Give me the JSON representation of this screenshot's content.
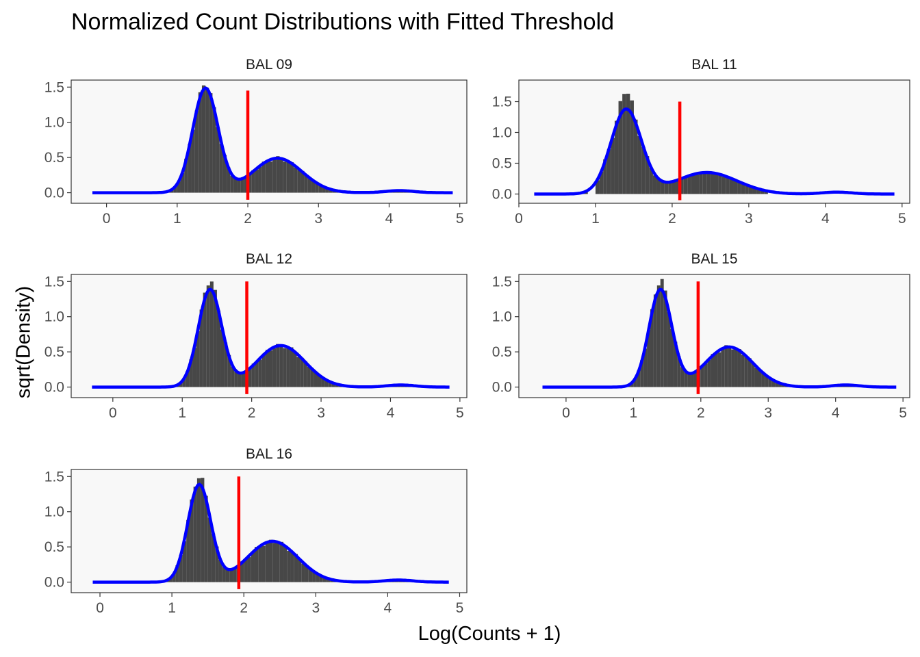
{
  "title": "Normalized Count Distributions with Fitted Threshold",
  "colors": {
    "panel_bg": "#f8f8f8",
    "bar": "#474747",
    "density": "#0000ff",
    "threshold": "#ff0000",
    "axis": "#333333"
  },
  "chart_data": {
    "type": "bar",
    "title": "Normalized Count Distributions with Fitted Threshold",
    "xlabel": "Log(Counts + 1)",
    "ylabel": "sqrt(Density)",
    "grid": false,
    "layout": "facet grid, 2 columns",
    "panels": [
      {
        "label": "BAL 09",
        "xlim": [
          -0.5,
          5.1
        ],
        "ylim": [
          -0.15,
          1.6
        ],
        "x_ticks": [
          0,
          1,
          2,
          3,
          4,
          5
        ],
        "y_ticks": [
          0.0,
          0.5,
          1.0,
          1.5
        ],
        "y_tick_labels": [
          "0.0",
          "0.5",
          "1.0",
          "1.5"
        ],
        "threshold": 2.0,
        "threshold_top": 1.45,
        "peak1": {
          "center": 1.4,
          "sd": 0.18,
          "height": 1.48
        },
        "peak2": {
          "center": 2.42,
          "sd": 0.35,
          "height": 0.49
        },
        "curve_range": [
          -0.2,
          4.9
        ],
        "hist_range": [
          0.2,
          4.5
        ],
        "hist_peak_boost": 0.08
      },
      {
        "label": "BAL 11",
        "xlim": [
          0.0,
          5.1
        ],
        "ylim": [
          -0.15,
          1.85
        ],
        "x_ticks": [
          0,
          1,
          2,
          3,
          4,
          5
        ],
        "y_ticks": [
          0.0,
          0.5,
          1.0,
          1.5
        ],
        "y_tick_labels": [
          "0.0",
          "0.5",
          "1.0",
          "1.5"
        ],
        "threshold": 2.1,
        "threshold_top": 1.5,
        "peak1": {
          "center": 1.4,
          "sd": 0.2,
          "height": 1.37
        },
        "peak2": {
          "center": 2.45,
          "sd": 0.4,
          "height": 0.35
        },
        "curve_range": [
          0.2,
          4.9
        ],
        "hist_range": [
          0.55,
          3.25
        ],
        "hist_peak_boost": 0.45
      },
      {
        "label": "BAL 12",
        "xlim": [
          -0.6,
          5.1
        ],
        "ylim": [
          -0.15,
          1.6
        ],
        "x_ticks": [
          0,
          1,
          2,
          3,
          4,
          5
        ],
        "y_ticks": [
          0.0,
          0.5,
          1.0,
          1.5
        ],
        "y_tick_labels": [
          "0.0",
          "0.5",
          "1.0",
          "1.5"
        ],
        "threshold": 1.93,
        "threshold_top": 1.5,
        "peak1": {
          "center": 1.4,
          "sd": 0.17,
          "height": 1.38
        },
        "peak2": {
          "center": 2.42,
          "sd": 0.35,
          "height": 0.59
        },
        "curve_range": [
          -0.3,
          4.85
        ],
        "hist_range": [
          0.0,
          4.5
        ],
        "hist_peak_boost": 0.18
      },
      {
        "label": "BAL 15",
        "xlim": [
          -0.7,
          5.1
        ],
        "ylim": [
          -0.15,
          1.6
        ],
        "x_ticks": [
          0,
          1,
          2,
          3,
          4,
          5
        ],
        "y_ticks": [
          0.0,
          0.5,
          1.0,
          1.5
        ],
        "y_tick_labels": [
          "0.0",
          "0.5",
          "1.0",
          "1.5"
        ],
        "threshold": 1.96,
        "threshold_top": 1.5,
        "peak1": {
          "center": 1.4,
          "sd": 0.17,
          "height": 1.38
        },
        "peak2": {
          "center": 2.42,
          "sd": 0.35,
          "height": 0.57
        },
        "curve_range": [
          -0.35,
          4.9
        ],
        "hist_range": [
          0.0,
          4.5
        ],
        "hist_peak_boost": 0.18
      },
      {
        "label": "BAL 16",
        "xlim": [
          -0.4,
          5.1
        ],
        "ylim": [
          -0.15,
          1.6
        ],
        "x_ticks": [
          0,
          1,
          2,
          3,
          4,
          5
        ],
        "y_ticks": [
          0.0,
          0.5,
          1.0,
          1.5
        ],
        "y_tick_labels": [
          "0.0",
          "0.5",
          "1.0",
          "1.5"
        ],
        "threshold": 1.93,
        "threshold_top": 1.5,
        "peak1": {
          "center": 1.38,
          "sd": 0.16,
          "height": 1.38
        },
        "peak2": {
          "center": 2.4,
          "sd": 0.35,
          "height": 0.58
        },
        "curve_range": [
          -0.1,
          4.85
        ],
        "hist_range": [
          0.3,
          4.5
        ],
        "hist_peak_boost": 0.16
      }
    ]
  }
}
